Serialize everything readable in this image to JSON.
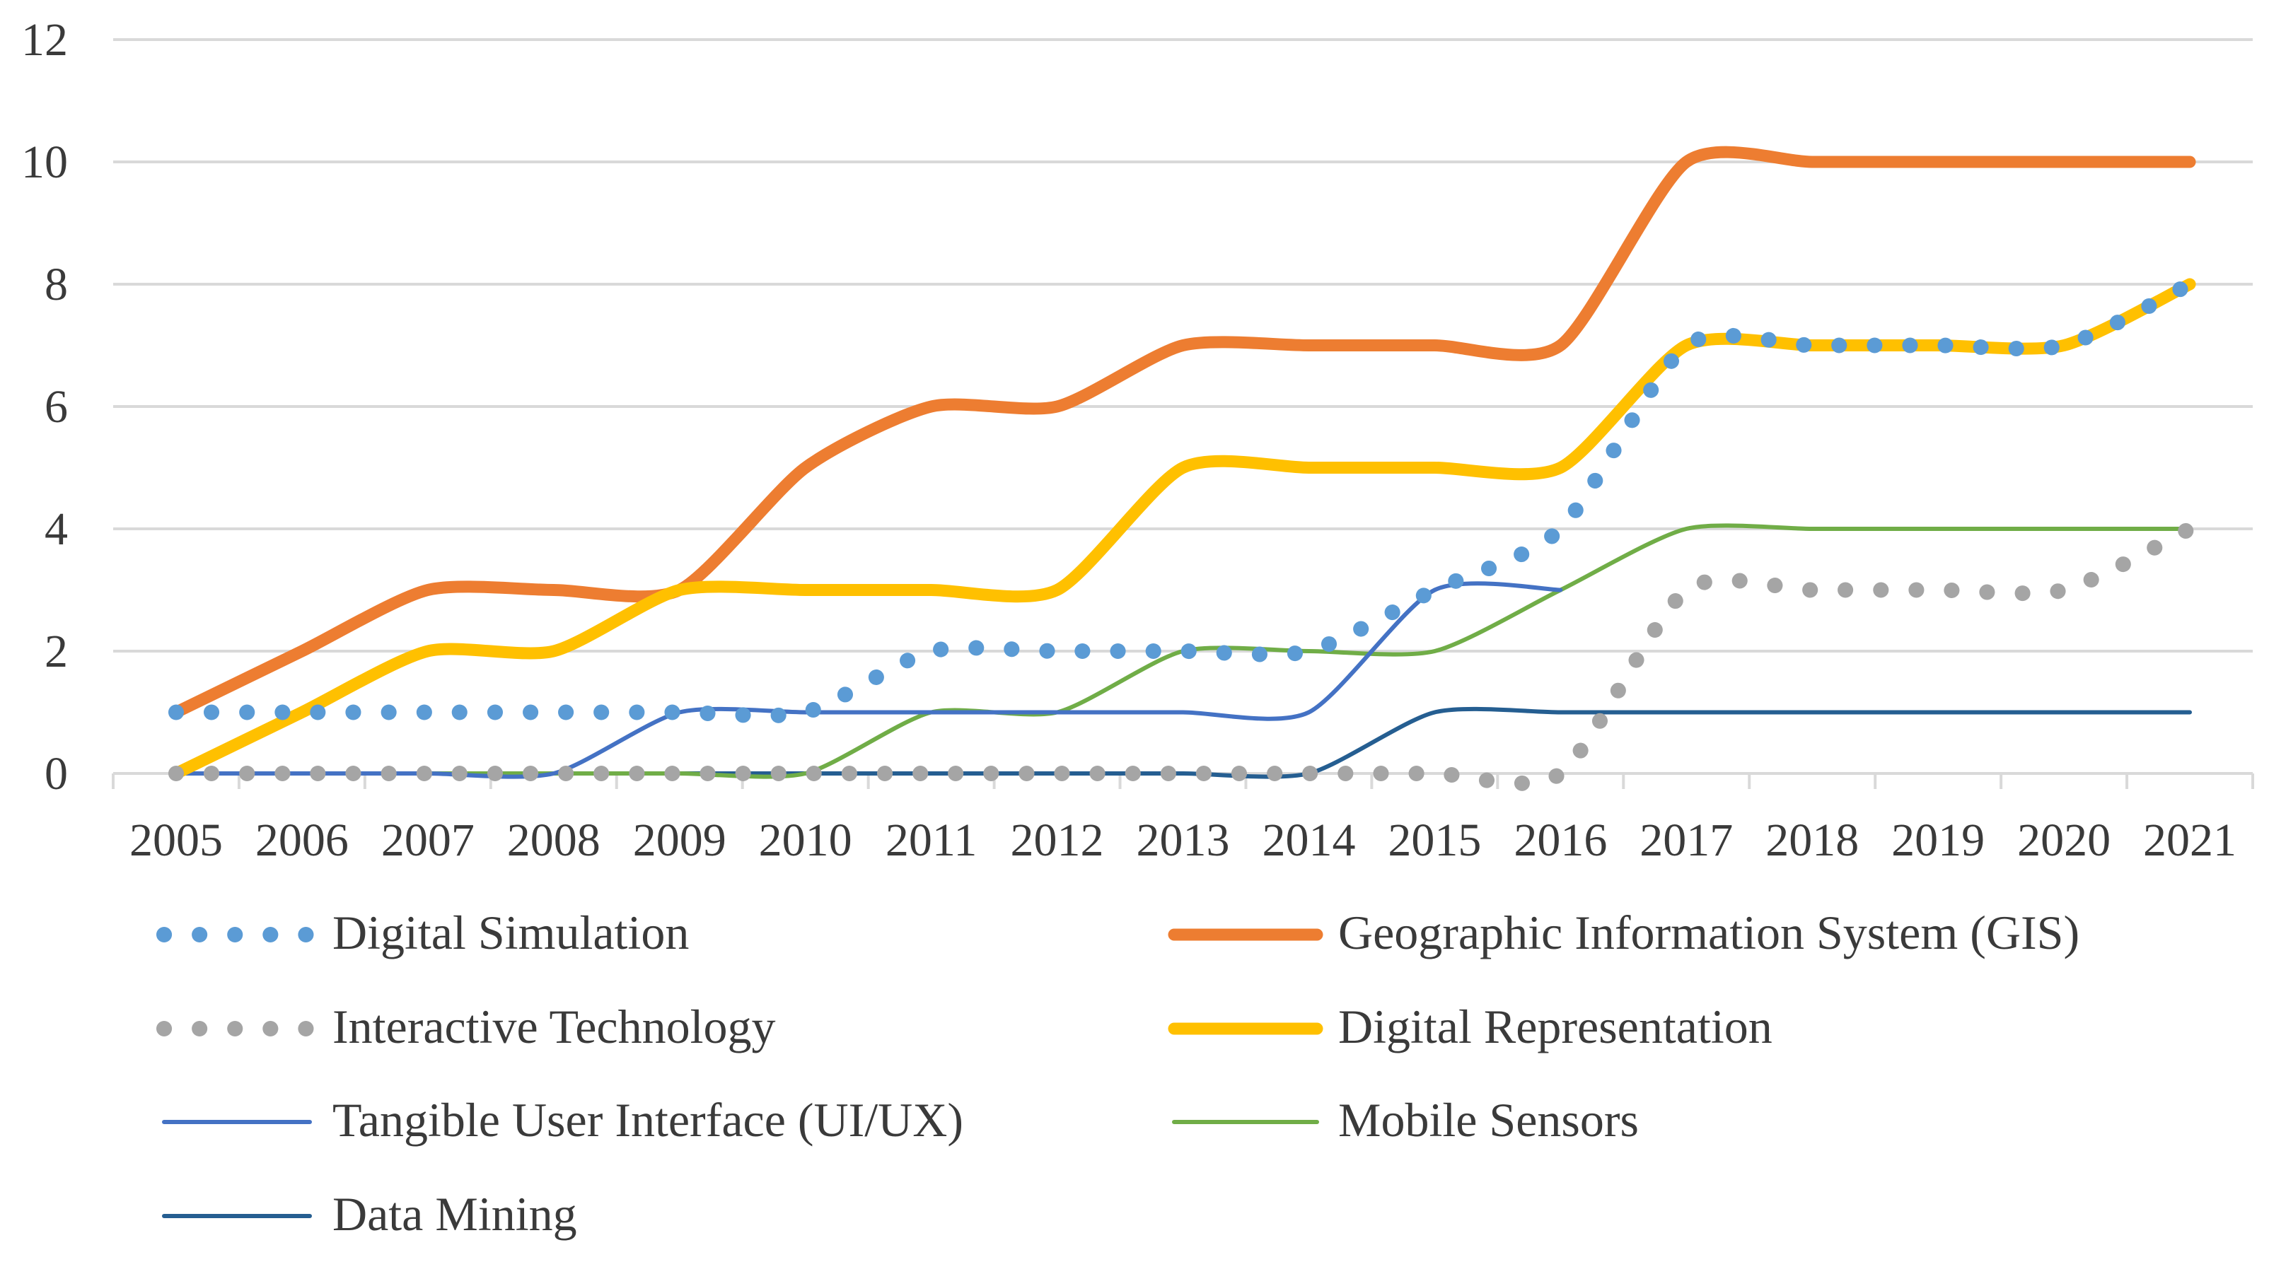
{
  "chart_data": {
    "type": "line",
    "title": "",
    "xlabel": "",
    "ylabel": "",
    "x": [
      "2005",
      "2006",
      "2007",
      "2008",
      "2009",
      "2010",
      "2011",
      "2012",
      "2013",
      "2014",
      "2015",
      "2016",
      "2017",
      "2018",
      "2019",
      "2020",
      "2021"
    ],
    "ylim": [
      0,
      12
    ],
    "yticks": [
      "0",
      "2",
      "4",
      "6",
      "8",
      "10",
      "12"
    ],
    "grid": true,
    "legend_position": "bottom",
    "series": [
      {
        "name": "Digital Simulation",
        "color": "#5B9BD5",
        "style": "dotted-thick",
        "values": [
          1,
          1,
          1,
          1,
          1,
          1,
          2,
          2,
          2,
          2,
          3,
          4,
          7,
          7,
          7,
          7,
          8
        ]
      },
      {
        "name": "Geographic Information System (GIS)",
        "color": "#ED7D31",
        "style": "solid-thick",
        "values": [
          1,
          2,
          3,
          3,
          3,
          5,
          6,
          6,
          7,
          7,
          7,
          7,
          10,
          10,
          10,
          10,
          10
        ]
      },
      {
        "name": "Interactive Technology",
        "color": "#A5A5A5",
        "style": "dotted-thick",
        "values": [
          0,
          0,
          0,
          0,
          0,
          0,
          0,
          0,
          0,
          0,
          0,
          0,
          3,
          3,
          3,
          3,
          4
        ]
      },
      {
        "name": "Digital Representation",
        "color": "#FFC000",
        "style": "solid-thick",
        "values": [
          0,
          1,
          2,
          2,
          3,
          3,
          3,
          3,
          5,
          5,
          5,
          5,
          7,
          7,
          7,
          7,
          8
        ]
      },
      {
        "name": "Tangible User Interface (UI/UX)",
        "color": "#4472C4",
        "style": "solid-thin",
        "values": [
          0,
          0,
          0,
          0,
          1,
          1,
          1,
          1,
          1,
          1,
          3,
          3,
          null,
          null,
          null,
          null,
          null
        ]
      },
      {
        "name": "Mobile Sensors",
        "color": "#70AD47",
        "style": "solid-thin",
        "values": [
          0,
          0,
          0,
          0,
          0,
          0,
          1,
          1,
          2,
          2,
          2,
          3,
          4,
          4,
          4,
          4,
          4
        ]
      },
      {
        "name": "Data Mining",
        "color": "#255E91",
        "style": "solid-thin",
        "values": [
          0,
          0,
          0,
          0,
          0,
          0,
          0,
          0,
          0,
          0,
          1,
          1,
          1,
          1,
          1,
          1,
          1
        ]
      }
    ]
  }
}
